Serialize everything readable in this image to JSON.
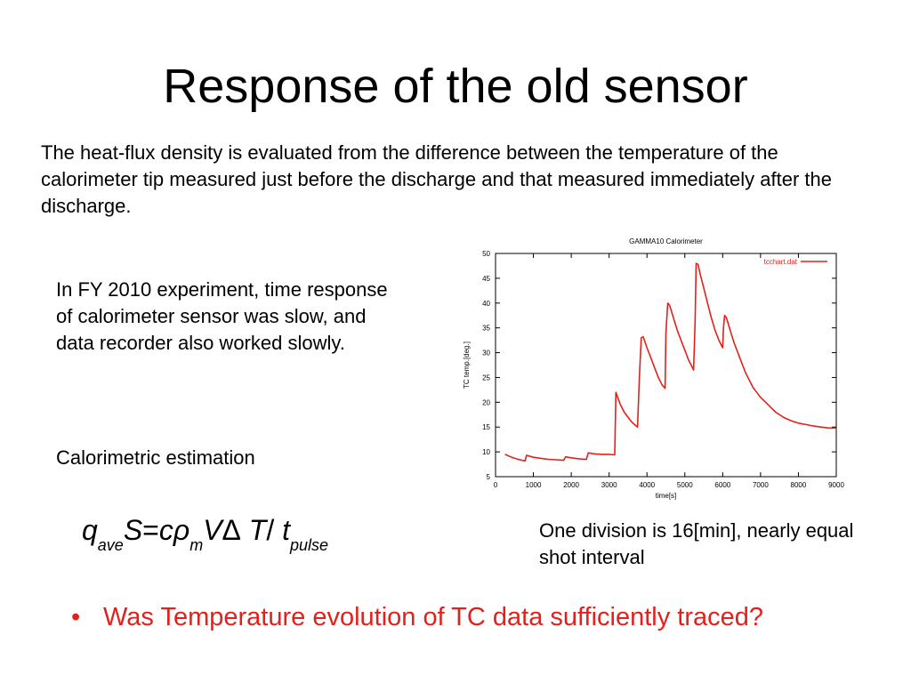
{
  "slide": {
    "title": "Response of the old sensor",
    "intro": "The heat-flux density is evaluated from the difference between the temperature of the calorimeter tip measured just before the discharge and that measured immediately after the discharge.",
    "note": "In FY 2010 experiment, time response of calorimeter sensor was slow, and data recorder also worked slowly.",
    "calorimetric_label": "Calorimetric estimation",
    "formula": {
      "q": "q",
      "q_sub": "ave",
      "S": "S",
      "eq": "=",
      "c": "c",
      "rho": "ρ",
      "rho_sub": "m",
      "V": "V",
      "delta": "Δ",
      "T": "T",
      "slash": "/",
      "t": "t",
      "t_sub": "pulse"
    },
    "division_note": "One division is 16[min], nearly equal shot interval",
    "bullet_marker": "•",
    "bullet": "Was Temperature evolution of TC data sufficiently traced?"
  },
  "chart_data": {
    "type": "line",
    "title": "GAMMA10 Calorimeter",
    "xlabel": "time[s]",
    "ylabel": "TC temp.[deg.]",
    "xlim": [
      0,
      9000
    ],
    "ylim": [
      5,
      50
    ],
    "xticks": [
      0,
      1000,
      2000,
      3000,
      4000,
      5000,
      6000,
      7000,
      8000,
      9000
    ],
    "yticks": [
      5,
      10,
      15,
      20,
      25,
      30,
      35,
      40,
      45,
      50
    ],
    "grid": false,
    "legend_position": "top-right",
    "line_color": "#e3211c",
    "series": [
      {
        "name": "tcchart.dat",
        "x": [
          250,
          400,
          550,
          700,
          780,
          820,
          1000,
          1200,
          1400,
          1600,
          1800,
          1850,
          2000,
          2200,
          2400,
          2450,
          2600,
          2800,
          3000,
          3150,
          3180,
          3300,
          3400,
          3500,
          3600,
          3700,
          3750,
          3800,
          3850,
          3900,
          4000,
          4100,
          4200,
          4300,
          4400,
          4480,
          4500,
          4550,
          4600,
          4700,
          4800,
          4900,
          5000,
          5100,
          5200,
          5230,
          5270,
          5300,
          5350,
          5400,
          5500,
          5600,
          5700,
          5800,
          5900,
          6000,
          6020,
          6050,
          6100,
          6200,
          6300,
          6400,
          6500,
          6600,
          6700,
          6800,
          6900,
          7000,
          7200,
          7400,
          7600,
          7800,
          8000,
          8200,
          8400,
          8600,
          8800,
          9000
        ],
        "y": [
          9.5,
          9.0,
          8.6,
          8.3,
          8.2,
          9.3,
          8.9,
          8.7,
          8.5,
          8.4,
          8.3,
          9.0,
          8.8,
          8.6,
          8.5,
          9.8,
          9.6,
          9.5,
          9.5,
          9.4,
          22.0,
          19.5,
          18.0,
          17.0,
          16.0,
          15.3,
          15.0,
          25.0,
          33.0,
          33.2,
          31.0,
          29.0,
          27.0,
          25.0,
          23.5,
          22.8,
          34.0,
          40.0,
          39.5,
          37.0,
          34.5,
          32.5,
          30.5,
          28.5,
          27.0,
          26.5,
          36.0,
          48.0,
          47.8,
          46.0,
          43.0,
          40.0,
          37.0,
          34.5,
          32.5,
          31.0,
          35.0,
          37.5,
          37.0,
          34.5,
          32.0,
          30.0,
          28.0,
          26.0,
          24.5,
          23.0,
          22.0,
          21.0,
          19.5,
          18.0,
          17.0,
          16.3,
          15.8,
          15.5,
          15.2,
          15.0,
          14.8,
          14.8
        ]
      }
    ]
  }
}
